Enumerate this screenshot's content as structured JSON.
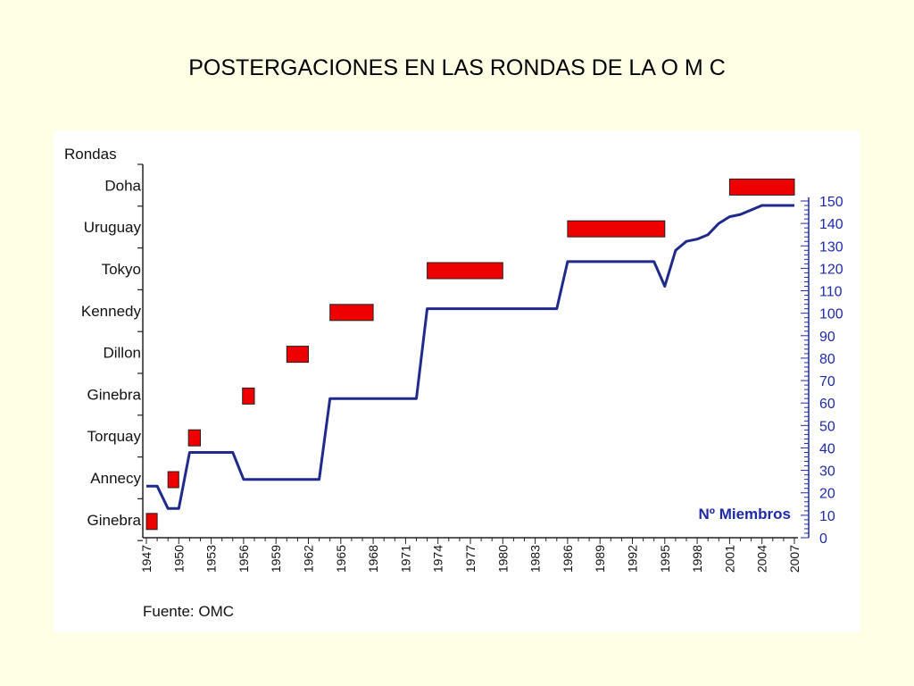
{
  "slide": {
    "title": "POSTERGACIONES EN LAS RONDAS DE LA O M C"
  },
  "chart_data": {
    "type": "line",
    "left_axis_title": "Rondas",
    "right_axis_label": "Nº Miembros",
    "source": "Fuente: OMC",
    "rounds": [
      "Ginebra",
      "Annecy",
      "Torquay",
      "Ginebra",
      "Dillon",
      "Kennedy",
      "Tokyo",
      "Uruguay",
      "Doha"
    ],
    "x_ticks": [
      1947,
      1950,
      1953,
      1956,
      1959,
      1962,
      1965,
      1968,
      1971,
      1974,
      1977,
      1980,
      1983,
      1986,
      1989,
      1992,
      1995,
      1998,
      2001,
      2004,
      2007
    ],
    "xlim": [
      1947,
      2007
    ],
    "ylim": [
      0,
      150
    ],
    "y_ticks": [
      0,
      10,
      20,
      30,
      40,
      50,
      60,
      70,
      80,
      90,
      100,
      110,
      120,
      130,
      140,
      150
    ],
    "round_periods": [
      {
        "round": "Ginebra",
        "start": 1947,
        "end": 1948
      },
      {
        "round": "Annecy",
        "start": 1949,
        "end": 1950
      },
      {
        "round": "Torquay",
        "start": 1950.9,
        "end": 1952
      },
      {
        "round": "Ginebra",
        "start": 1955.9,
        "end": 1957
      },
      {
        "round": "Dillon",
        "start": 1960,
        "end": 1962
      },
      {
        "round": "Kennedy",
        "start": 1964,
        "end": 1968
      },
      {
        "round": "Tokyo",
        "start": 1973,
        "end": 1980
      },
      {
        "round": "Uruguay",
        "start": 1986,
        "end": 1995
      },
      {
        "round": "Doha",
        "start": 2001,
        "end": 2007
      }
    ],
    "series": [
      {
        "color": "#1f2a8c",
        "points": [
          [
            1947,
            23
          ],
          [
            1948,
            23
          ],
          [
            1949,
            13
          ],
          [
            1950,
            13
          ],
          [
            1951,
            38
          ],
          [
            1952,
            38
          ],
          [
            1955,
            38
          ],
          [
            1956,
            26
          ],
          [
            1963,
            26
          ],
          [
            1964,
            62
          ],
          [
            1972,
            62
          ],
          [
            1973,
            102
          ],
          [
            1985,
            102
          ],
          [
            1986,
            123
          ],
          [
            1994,
            123
          ],
          [
            1995,
            112
          ],
          [
            1996,
            128
          ],
          [
            1997,
            132
          ],
          [
            1998,
            133
          ],
          [
            1999,
            135
          ],
          [
            2000,
            140
          ],
          [
            2001,
            143
          ],
          [
            2002,
            144
          ],
          [
            2004,
            148
          ],
          [
            2007,
            148
          ]
        ]
      }
    ],
    "bar_color": "#ee0000"
  }
}
